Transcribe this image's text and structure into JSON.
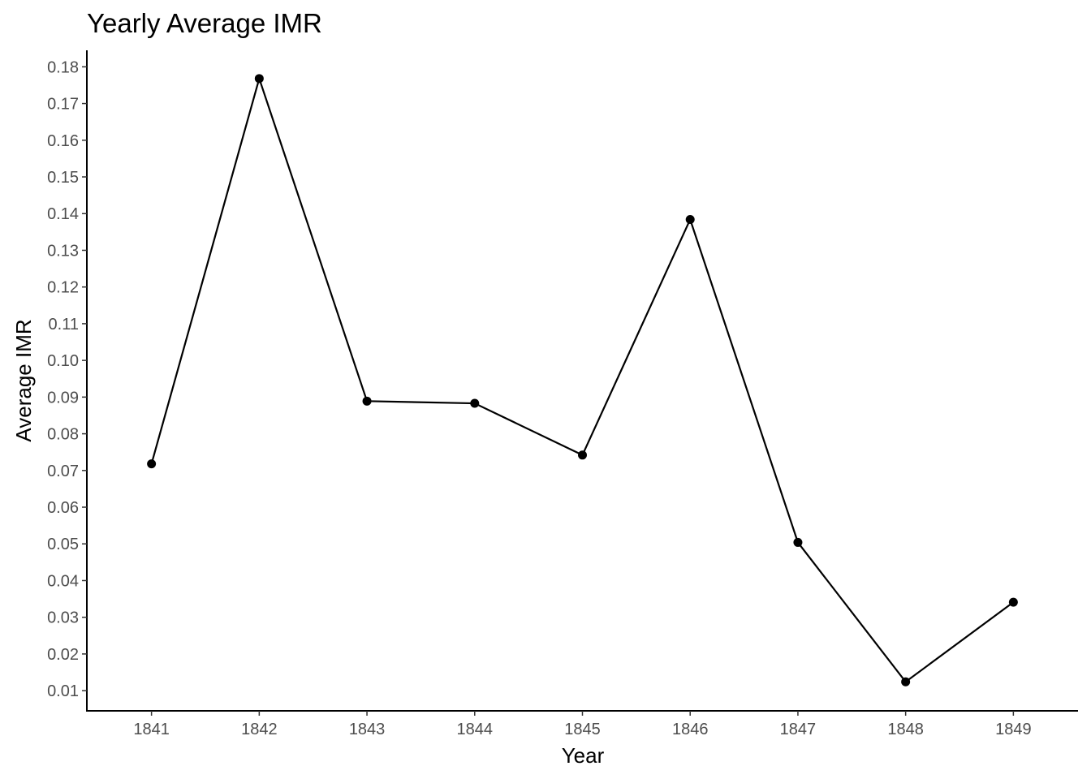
{
  "chart_data": {
    "type": "line",
    "title": "Yearly Average IMR",
    "xlabel": "Year",
    "ylabel": "Average IMR",
    "x": [
      1841,
      1842,
      1843,
      1844,
      1845,
      1846,
      1847,
      1848,
      1849
    ],
    "x_tick_labels": [
      "1841",
      "1842",
      "1843",
      "1844",
      "1845",
      "1846",
      "1847",
      "1848",
      "1849"
    ],
    "y_ticks": [
      0.01,
      0.02,
      0.03,
      0.04,
      0.05,
      0.06,
      0.07,
      0.08,
      0.09,
      0.1,
      0.11,
      0.12,
      0.13,
      0.14,
      0.15,
      0.16,
      0.17,
      0.18
    ],
    "y_tick_labels": [
      "0.01",
      "0.02",
      "0.03",
      "0.04",
      "0.05",
      "0.06",
      "0.07",
      "0.08",
      "0.09",
      "0.10",
      "0.11",
      "0.12",
      "0.13",
      "0.14",
      "0.15",
      "0.16",
      "0.17",
      "0.18"
    ],
    "ylim": [
      0.0045,
      0.1845
    ],
    "xlim": [
      1840.4,
      1849.6
    ],
    "grid": false,
    "legend": "none",
    "series": [
      {
        "values": [
          0.0718,
          0.1768,
          0.0889,
          0.0883,
          0.0742,
          0.1384,
          0.0504,
          0.0124,
          0.0341
        ],
        "color": "#000000"
      }
    ]
  }
}
